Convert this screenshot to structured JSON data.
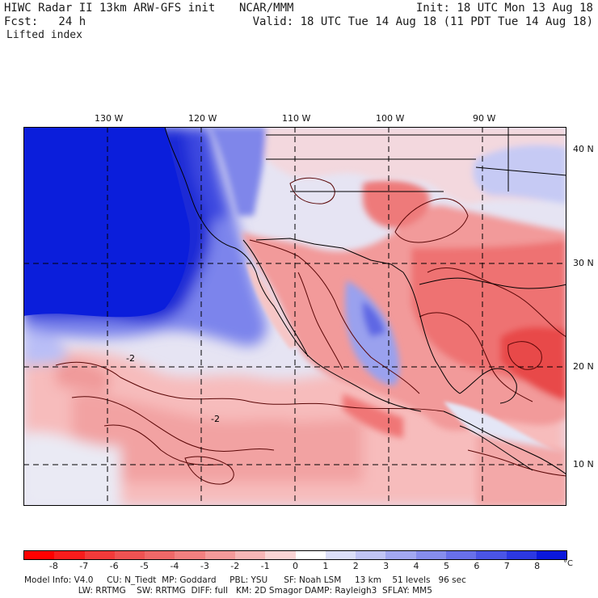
{
  "header": {
    "left_line1": "HIWC Radar II 13km ARW-GFS init",
    "left_line2": "Fcst:   24 h",
    "center": "NCAR/MMM",
    "right_line1": "Init: 18 UTC Mon 13 Aug 18",
    "right_line2": "Valid: 18 UTC Tue 14 Aug 18 (11 PDT Tue 14 Aug 18)"
  },
  "field_name": "Lifted index",
  "map": {
    "longitude_labels": [
      "130 W",
      "120 W",
      "110 W",
      "100 W",
      "90 W"
    ],
    "latitude_labels": [
      "40 N",
      "30 N",
      "20 N",
      "10 N"
    ],
    "contour_labels": [
      "-2",
      "-2"
    ],
    "colors": {
      "strong_stable": "#0a1fd8",
      "stable": "#7e86ee",
      "weak_stable": "#c9ccf6",
      "neutral": "#f6eef0",
      "weak_unstable": "#f7b4b4",
      "unstable": "#f07a7a",
      "strong_unstable": "#e84848"
    }
  },
  "colorbar": {
    "tick_labels": [
      "-8",
      "-7",
      "-6",
      "-5",
      "-4",
      "-3",
      "-2",
      "-1",
      "0",
      "1",
      "2",
      "3",
      "4",
      "5",
      "6",
      "7",
      "8"
    ],
    "unit": "°C",
    "colors": [
      "#ff0000",
      "#f81c1c",
      "#f23a3a",
      "#ee5252",
      "#ef6868",
      "#f28080",
      "#f49a9a",
      "#f7b6b6",
      "#fad4d4",
      "#ffffff",
      "#dcdff8",
      "#c1c5f5",
      "#a2a8f1",
      "#868ded",
      "#6870ea",
      "#4a54e6",
      "#2c38e2",
      "#0a18dc"
    ]
  },
  "footer": {
    "line1": "Model Info: V4.0     CU: N_Tiedt  MP: Goddard     PBL: YSU      SF: Noah LSM     13 km    51 levels   96 sec",
    "line2": "                    LW: RRTMG    SW: RRTMG  DIFF: full   KM: 2D Smagor DAMP: Rayleigh3  SFLAY: MM5"
  }
}
